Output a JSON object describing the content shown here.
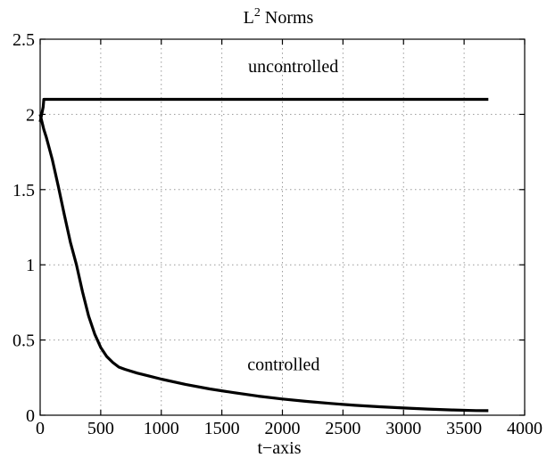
{
  "chart_data": {
    "type": "line",
    "title_base": "L",
    "title_sup": "2",
    "title_rest": " Norms",
    "xlabel": "t−axis",
    "ylabel": "",
    "xlim": [
      0,
      4000
    ],
    "ylim": [
      0,
      2.5
    ],
    "xticks": [
      0,
      500,
      1000,
      1500,
      2000,
      2500,
      3000,
      3500,
      4000
    ],
    "yticks": [
      0,
      0.5,
      1,
      1.5,
      2,
      2.5
    ],
    "xtick_labels": [
      "0",
      "500",
      "1000",
      "1500",
      "2000",
      "2500",
      "3000",
      "3500",
      "4000"
    ],
    "ytick_labels": [
      "0",
      "0.5",
      "1",
      "1.5",
      "2",
      "2.5"
    ],
    "grid": true,
    "annotations": [
      {
        "text": "uncontrolled",
        "x": 2090,
        "y": 2.28
      },
      {
        "text": "controlled",
        "x": 2010,
        "y": 0.3
      }
    ],
    "series": [
      {
        "x": [
          0,
          25,
          30,
          3700
        ],
        "y": [
          1.95,
          2.05,
          2.1,
          2.1
        ]
      },
      {
        "x": [
          0,
          30,
          50,
          100,
          150,
          200,
          250,
          300,
          350,
          400,
          450,
          500,
          550,
          600,
          650,
          700,
          800,
          900,
          1000,
          1200,
          1400,
          1600,
          1800,
          2000,
          2200,
          2400,
          2600,
          2800,
          3000,
          3200,
          3400,
          3600,
          3700
        ],
        "y": [
          2.0,
          1.9,
          1.85,
          1.7,
          1.52,
          1.33,
          1.15,
          1.0,
          0.82,
          0.66,
          0.54,
          0.45,
          0.39,
          0.35,
          0.32,
          0.305,
          0.28,
          0.26,
          0.24,
          0.205,
          0.175,
          0.15,
          0.127,
          0.108,
          0.092,
          0.078,
          0.066,
          0.056,
          0.048,
          0.041,
          0.035,
          0.031,
          0.03
        ]
      }
    ]
  }
}
